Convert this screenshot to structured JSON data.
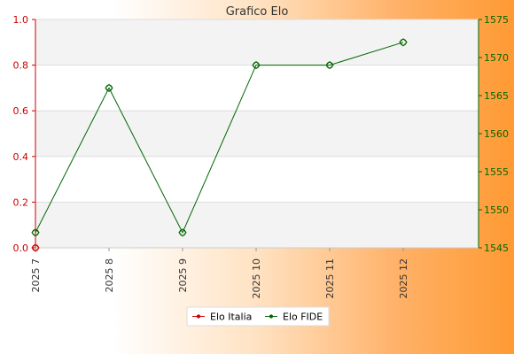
{
  "chart_data": {
    "type": "line",
    "title": "Grafico Elo",
    "categories": [
      "2025 7",
      "2025 8",
      "2025 9",
      "2025 10",
      "2025 11",
      "2025 12"
    ],
    "series": [
      {
        "name": "Elo Italia",
        "axis": "left",
        "color": "#cc0000",
        "values": [
          0,
          null,
          null,
          null,
          null,
          null
        ]
      },
      {
        "name": "Elo FIDE",
        "axis": "right",
        "color": "#006600",
        "values": [
          1547,
          1566,
          1547,
          1569,
          1569,
          1572
        ]
      }
    ],
    "y_left": {
      "range": [
        0,
        1
      ],
      "ticks": [
        "0.0",
        "0.2",
        "0.4",
        "0.6",
        "0.8",
        "1.0"
      ]
    },
    "y_right": {
      "range": [
        1545,
        1575
      ],
      "ticks": [
        "1545",
        "1550",
        "1555",
        "1560",
        "1565",
        "1570",
        "1575"
      ]
    },
    "grid": true,
    "legend_position": "bottom-center"
  }
}
